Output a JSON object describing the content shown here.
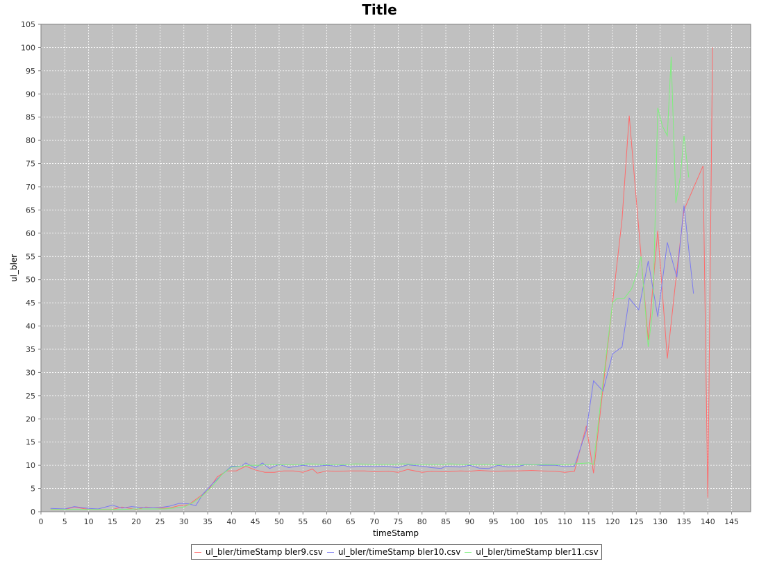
{
  "chart_data": {
    "type": "line",
    "title": "Title",
    "xlabel": "timeStamp",
    "ylabel": "ul_bler",
    "xlim": [
      0,
      149
    ],
    "ylim": [
      0,
      105
    ],
    "x_ticks": [
      0,
      5,
      10,
      15,
      20,
      25,
      30,
      35,
      40,
      45,
      50,
      55,
      60,
      65,
      70,
      75,
      80,
      85,
      90,
      95,
      100,
      105,
      110,
      115,
      120,
      125,
      130,
      135,
      140,
      145
    ],
    "y_ticks": [
      0,
      5,
      10,
      15,
      20,
      25,
      30,
      35,
      40,
      45,
      50,
      55,
      60,
      65,
      70,
      75,
      80,
      85,
      90,
      95,
      100,
      105
    ],
    "grid": true,
    "legend_position": "bottom",
    "series": [
      {
        "name": "ul_bler/timeStamp bler9.csv",
        "color": "#ff6b6b",
        "points": [
          [
            2,
            0.5
          ],
          [
            5,
            0.5
          ],
          [
            7,
            1
          ],
          [
            10,
            0.5
          ],
          [
            12,
            0.5
          ],
          [
            15,
            0.5
          ],
          [
            17,
            1
          ],
          [
            20,
            0.5
          ],
          [
            22,
            1
          ],
          [
            25,
            0.8
          ],
          [
            27,
            0.8
          ],
          [
            29,
            1.3
          ],
          [
            31,
            1.5
          ],
          [
            33,
            3
          ],
          [
            35,
            4.5
          ],
          [
            37,
            7.5
          ],
          [
            39,
            8.8
          ],
          [
            41,
            8.8
          ],
          [
            43,
            9.8
          ],
          [
            45,
            9
          ],
          [
            47,
            8.5
          ],
          [
            49,
            8.5
          ],
          [
            51,
            8.8
          ],
          [
            53,
            8.8
          ],
          [
            55,
            8.5
          ],
          [
            57,
            9.2
          ],
          [
            58,
            8.3
          ],
          [
            60,
            8.8
          ],
          [
            62,
            8.7
          ],
          [
            65,
            8.8
          ],
          [
            68,
            8.8
          ],
          [
            70,
            8.6
          ],
          [
            73,
            8.7
          ],
          [
            75,
            8.5
          ],
          [
            77,
            9.1
          ],
          [
            80,
            8.5
          ],
          [
            82,
            8.7
          ],
          [
            85,
            8.6
          ],
          [
            88,
            8.8
          ],
          [
            90,
            8.7
          ],
          [
            92,
            8.9
          ],
          [
            95,
            8.7
          ],
          [
            98,
            8.8
          ],
          [
            100,
            8.8
          ],
          [
            103,
            8.9
          ],
          [
            105,
            8.8
          ],
          [
            108,
            8.7
          ],
          [
            110,
            8.5
          ],
          [
            112,
            8.7
          ],
          [
            114.5,
            18.5
          ],
          [
            116,
            8.3
          ],
          [
            120,
            45
          ],
          [
            122,
            63
          ],
          [
            123.5,
            85.3
          ],
          [
            126,
            55
          ],
          [
            127.5,
            37
          ],
          [
            129.5,
            60.5
          ],
          [
            131.5,
            33
          ],
          [
            133.5,
            52
          ],
          [
            135,
            65
          ],
          [
            139,
            74.5
          ],
          [
            140,
            3
          ],
          [
            141,
            100
          ]
        ]
      },
      {
        "name": "ul_bler/timeStamp bler10.csv",
        "color": "#7b7bf0",
        "points": [
          [
            2,
            0.7
          ],
          [
            5,
            0.6
          ],
          [
            7,
            1.1
          ],
          [
            10,
            0.7
          ],
          [
            12,
            0.6
          ],
          [
            15,
            1.4
          ],
          [
            17,
            0.8
          ],
          [
            19,
            1.1
          ],
          [
            21,
            0.9
          ],
          [
            23,
            0.9
          ],
          [
            25,
            0.9
          ],
          [
            27,
            1.2
          ],
          [
            29,
            1.8
          ],
          [
            31,
            1.7
          ],
          [
            32.5,
            1.3
          ],
          [
            34,
            3.8
          ],
          [
            36,
            6
          ],
          [
            38,
            8
          ],
          [
            40,
            9.8
          ],
          [
            42,
            9.8
          ],
          [
            43,
            10.5
          ],
          [
            45,
            9.4
          ],
          [
            46.5,
            10.5
          ],
          [
            48,
            9.3
          ],
          [
            50,
            10.2
          ],
          [
            52,
            9.5
          ],
          [
            55,
            10
          ],
          [
            57,
            9.7
          ],
          [
            60,
            10
          ],
          [
            62,
            9.8
          ],
          [
            63.5,
            10
          ],
          [
            65,
            9.6
          ],
          [
            67,
            9.8
          ],
          [
            70,
            9.7
          ],
          [
            72,
            9.8
          ],
          [
            75,
            9.5
          ],
          [
            77,
            10.1
          ],
          [
            80,
            9.8
          ],
          [
            82,
            9.5
          ],
          [
            84,
            9.3
          ],
          [
            85,
            9.8
          ],
          [
            88,
            9.6
          ],
          [
            90,
            10
          ],
          [
            92,
            9.4
          ],
          [
            94,
            9.3
          ],
          [
            96,
            10
          ],
          [
            98,
            9.6
          ],
          [
            100,
            9.7
          ],
          [
            102,
            10.2
          ],
          [
            105,
            10
          ],
          [
            108,
            10
          ],
          [
            110,
            9.7
          ],
          [
            112,
            9.8
          ],
          [
            114.5,
            17.5
          ],
          [
            116,
            28.2
          ],
          [
            118,
            26
          ],
          [
            120,
            34
          ],
          [
            122,
            35.5
          ],
          [
            123.5,
            46
          ],
          [
            125.5,
            43.5
          ],
          [
            127.5,
            54
          ],
          [
            129.5,
            42
          ],
          [
            131.5,
            58
          ],
          [
            133.5,
            50.5
          ],
          [
            135,
            66
          ],
          [
            137,
            47
          ]
        ]
      },
      {
        "name": "ul_bler/timeStamp bler11.csv",
        "color": "#7cf07c",
        "points": [
          [
            2,
            0.5
          ],
          [
            5,
            0.5
          ],
          [
            8,
            0.5
          ],
          [
            11,
            0.5
          ],
          [
            14,
            0.5
          ],
          [
            17,
            0.5
          ],
          [
            20,
            0.6
          ],
          [
            23,
            0.6
          ],
          [
            26,
            0.6
          ],
          [
            28,
            0.8
          ],
          [
            30,
            1
          ],
          [
            32,
            2
          ],
          [
            34,
            3.5
          ],
          [
            36,
            5.5
          ],
          [
            38,
            8
          ],
          [
            40,
            9.6
          ],
          [
            42,
            9.8
          ],
          [
            44,
            10
          ],
          [
            46,
            10
          ],
          [
            48,
            10.2
          ],
          [
            50,
            10.1
          ],
          [
            53,
            10.1
          ],
          [
            56,
            10.3
          ],
          [
            60,
            10.2
          ],
          [
            63,
            10.1
          ],
          [
            66,
            10.3
          ],
          [
            70,
            10.2
          ],
          [
            73,
            10.2
          ],
          [
            76,
            10.3
          ],
          [
            80,
            10.2
          ],
          [
            83,
            10.2
          ],
          [
            86,
            10.3
          ],
          [
            90,
            10.1
          ],
          [
            93,
            10.2
          ],
          [
            96,
            10.1
          ],
          [
            100,
            10.2
          ],
          [
            103,
            10.1
          ],
          [
            106,
            10.2
          ],
          [
            109,
            10.1
          ],
          [
            112,
            10.3
          ],
          [
            115,
            10.5
          ],
          [
            116,
            10.2
          ],
          [
            118,
            28
          ],
          [
            120,
            45
          ],
          [
            121,
            46
          ],
          [
            122.5,
            46
          ],
          [
            124,
            48
          ],
          [
            125,
            51
          ],
          [
            126,
            55
          ],
          [
            127.5,
            35.5
          ],
          [
            128.5,
            44
          ],
          [
            129.5,
            87
          ],
          [
            130.5,
            83
          ],
          [
            131.5,
            81
          ],
          [
            132.3,
            98
          ],
          [
            133.3,
            66.5
          ],
          [
            134.2,
            72
          ],
          [
            135,
            81
          ],
          [
            136,
            72
          ]
        ]
      }
    ]
  }
}
